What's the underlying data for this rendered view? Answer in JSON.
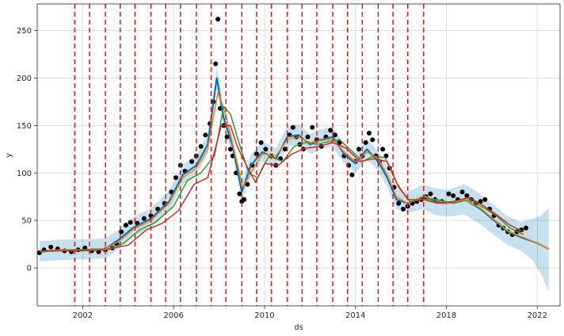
{
  "chart_data": {
    "type": "line",
    "title": "",
    "xlabel": "ds",
    "ylabel": "y",
    "xlim": [
      2000.0,
      2023.0
    ],
    "ylim": [
      -40,
      278
    ],
    "x_ticks": [
      2002,
      2006,
      2010,
      2014,
      2018,
      2022
    ],
    "x_tick_labels": [
      "2002",
      "2006",
      "2010",
      "2014",
      "2018",
      "2022"
    ],
    "y_ticks": [
      0,
      50,
      100,
      150,
      200,
      250
    ],
    "y_tick_labels": [
      "0",
      "50",
      "100",
      "150",
      "200",
      "250"
    ],
    "grid": true,
    "changepoints": [
      2001.65,
      2002.3,
      2003.0,
      2003.65,
      2004.3,
      2005.0,
      2005.65,
      2006.3,
      2007.0,
      2007.65,
      2008.3,
      2009.0,
      2009.65,
      2010.3,
      2011.0,
      2011.65,
      2012.3,
      2013.0,
      2013.65,
      2014.3,
      2015.0,
      2015.65,
      2016.3,
      2017.0
    ],
    "observed": {
      "x": [
        2000.1,
        2000.3,
        2000.6,
        2000.9,
        2001.2,
        2001.5,
        2001.8,
        2002.1,
        2002.4,
        2002.7,
        2003.0,
        2003.3,
        2003.5,
        2003.7,
        2003.9,
        2004.1,
        2004.4,
        2004.7,
        2005.0,
        2005.3,
        2005.6,
        2005.9,
        2006.1,
        2006.3,
        2006.5,
        2006.8,
        2007.0,
        2007.2,
        2007.4,
        2007.6,
        2007.75,
        2007.85,
        2007.95,
        2008.05,
        2008.2,
        2008.35,
        2008.5,
        2008.6,
        2008.75,
        2008.9,
        2009.0,
        2009.1,
        2009.25,
        2009.45,
        2009.65,
        2009.85,
        2010.05,
        2010.3,
        2010.5,
        2010.7,
        2010.9,
        2011.1,
        2011.25,
        2011.4,
        2011.55,
        2011.7,
        2011.9,
        2012.1,
        2012.3,
        2012.5,
        2012.7,
        2012.9,
        2013.1,
        2013.3,
        2013.5,
        2013.7,
        2013.85,
        2014.0,
        2014.15,
        2014.3,
        2014.45,
        2014.6,
        2014.75,
        2014.9,
        2015.05,
        2015.2,
        2015.35,
        2015.5,
        2015.7,
        2015.9,
        2016.1,
        2016.3,
        2016.5,
        2016.7,
        2016.9,
        2017.1,
        2017.3,
        2017.5,
        2017.8,
        2018.1,
        2018.3,
        2018.5,
        2018.7,
        2018.9,
        2019.1,
        2019.3,
        2019.5,
        2019.7,
        2019.9,
        2020.1,
        2020.3,
        2020.5,
        2020.7,
        2020.9,
        2021.1,
        2021.3,
        2021.5
      ],
      "y": [
        16,
        19,
        22,
        20,
        18,
        17,
        19,
        21,
        18,
        17,
        19,
        21,
        25,
        38,
        45,
        48,
        47,
        52,
        55,
        62,
        68,
        80,
        95,
        108,
        102,
        112,
        118,
        128,
        140,
        152,
        175,
        215,
        262,
        168,
        150,
        138,
        125,
        118,
        100,
        78,
        70,
        72,
        88,
        108,
        120,
        132,
        125,
        118,
        108,
        115,
        125,
        140,
        148,
        138,
        130,
        125,
        138,
        148,
        135,
        128,
        138,
        145,
        140,
        132,
        118,
        108,
        98,
        112,
        125,
        118,
        132,
        142,
        135,
        118,
        112,
        125,
        118,
        105,
        85,
        68,
        62,
        65,
        68,
        70,
        72,
        75,
        78,
        72,
        70,
        78,
        76,
        72,
        80,
        76,
        72,
        68,
        70,
        72,
        62,
        55,
        45,
        42,
        38,
        35,
        38,
        40,
        42
      ]
    },
    "series": [
      {
        "x": [
          2000.1,
          2001.0,
          2002.0,
          2003.0,
          2003.6,
          2004.2,
          2005.0,
          2005.8,
          2006.4,
          2007.0,
          2007.5,
          2007.9,
          2008.2,
          2008.6,
          2009.0,
          2009.4,
          2009.9,
          2010.5,
          2011.0,
          2011.5,
          2012.0,
          2012.5,
          2013.0,
          2013.5,
          2014.0,
          2014.5,
          2015.0,
          2015.4,
          2015.8,
          2016.3,
          2017.0,
          2017.5,
          2018.0,
          2018.8,
          2019.5,
          2020.0,
          2020.7,
          2021.3,
          2022.0,
          2022.5
        ],
        "y": [
          17,
          19,
          19,
          20,
          30,
          42,
          52,
          70,
          98,
          108,
          130,
          200,
          158,
          128,
          80,
          108,
          122,
          115,
          138,
          140,
          130,
          135,
          138,
          120,
          110,
          125,
          112,
          95,
          72,
          68,
          75,
          70,
          68,
          72,
          62,
          52,
          38,
          32,
          26,
          20
        ]
      },
      {
        "x": [
          2000.1,
          2001.0,
          2002.0,
          2003.0,
          2003.6,
          2004.2,
          2005.0,
          2005.8,
          2006.4,
          2007.0,
          2007.5,
          2007.95,
          2008.25,
          2008.6,
          2009.05,
          2009.4,
          2009.9,
          2010.5,
          2011.0,
          2011.5,
          2012.0,
          2012.5,
          2013.0,
          2013.5,
          2014.0,
          2014.5,
          2015.0,
          2015.4,
          2015.8,
          2016.3,
          2017.0,
          2017.5,
          2018.0,
          2018.8,
          2019.5,
          2020.0,
          2020.7,
          2021.3,
          2022.0,
          2022.5
        ],
        "y": [
          17,
          19,
          19,
          20,
          28,
          40,
          50,
          68,
          95,
          105,
          125,
          185,
          165,
          130,
          85,
          100,
          120,
          118,
          135,
          138,
          132,
          134,
          136,
          122,
          112,
          122,
          115,
          98,
          75,
          68,
          76,
          72,
          68,
          72,
          63,
          53,
          39,
          33,
          26,
          20
        ]
      },
      {
        "x": [
          2000.1,
          2001.0,
          2002.0,
          2003.0,
          2003.8,
          2004.5,
          2005.2,
          2006.0,
          2006.6,
          2007.2,
          2007.8,
          2008.2,
          2008.5,
          2008.9,
          2009.3,
          2009.7,
          2010.2,
          2010.8,
          2011.3,
          2011.8,
          2012.3,
          2012.8,
          2013.3,
          2013.8,
          2014.3,
          2014.8,
          2015.3,
          2015.8,
          2016.3,
          2017.0,
          2017.6,
          2018.3,
          2019.0,
          2019.6,
          2020.2,
          2020.8,
          2021.4
        ],
        "y": [
          17,
          18,
          19,
          19,
          26,
          40,
          48,
          65,
          92,
          100,
          118,
          170,
          162,
          130,
          100,
          95,
          118,
          112,
          128,
          132,
          130,
          133,
          135,
          124,
          112,
          118,
          116,
          90,
          72,
          72,
          72,
          68,
          72,
          64,
          55,
          42,
          35
        ]
      },
      {
        "x": [
          2000.1,
          2001.0,
          2002.0,
          2003.0,
          2004.0,
          2004.8,
          2005.5,
          2006.2,
          2006.9,
          2007.5,
          2008.1,
          2008.5,
          2008.8,
          2009.2,
          2009.6,
          2010.0,
          2010.6,
          2011.2,
          2011.8,
          2012.4,
          2013.0,
          2013.6,
          2014.2,
          2014.8,
          2015.4,
          2015.9,
          2016.4,
          2017.0,
          2017.6,
          2018.3,
          2019.0,
          2019.6,
          2020.2,
          2020.8,
          2021.4
        ],
        "y": [
          18,
          18,
          18,
          19,
          24,
          40,
          47,
          60,
          88,
          95,
          150,
          150,
          128,
          108,
          90,
          110,
          108,
          120,
          126,
          128,
          132,
          126,
          112,
          115,
          112,
          85,
          70,
          72,
          68,
          70,
          74,
          66,
          56,
          45,
          38
        ]
      }
    ],
    "uncertainty_band": {
      "x": [
        2000.1,
        2001.0,
        2002.0,
        2003.0,
        2003.6,
        2004.2,
        2005.0,
        2005.8,
        2006.4,
        2007.0,
        2007.5,
        2007.9,
        2008.2,
        2008.6,
        2009.0,
        2009.4,
        2009.9,
        2010.5,
        2011.0,
        2011.5,
        2012.0,
        2012.5,
        2013.0,
        2013.5,
        2014.0,
        2014.5,
        2015.0,
        2015.4,
        2015.8,
        2016.3,
        2017.0,
        2017.5,
        2018.0,
        2018.8,
        2019.5,
        2020.0,
        2020.7,
        2021.3,
        2021.8,
        2022.2,
        2022.5
      ],
      "lower": [
        7,
        8,
        9,
        10,
        20,
        32,
        42,
        60,
        88,
        98,
        120,
        190,
        148,
        118,
        70,
        98,
        112,
        105,
        128,
        130,
        120,
        125,
        128,
        110,
        100,
        115,
        102,
        85,
        62,
        58,
        62,
        56,
        54,
        56,
        46,
        36,
        24,
        18,
        8,
        -8,
        -25
      ],
      "upper": [
        28,
        30,
        30,
        31,
        41,
        53,
        63,
        81,
        109,
        119,
        141,
        212,
        169,
        139,
        91,
        119,
        133,
        126,
        149,
        151,
        141,
        146,
        149,
        131,
        121,
        136,
        123,
        106,
        84,
        80,
        88,
        84,
        82,
        88,
        78,
        68,
        54,
        48,
        52,
        56,
        63
      ]
    }
  }
}
